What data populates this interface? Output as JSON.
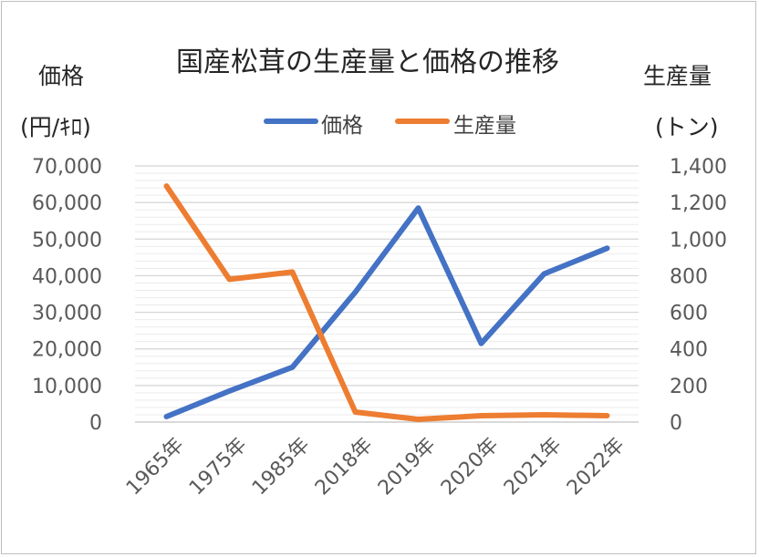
{
  "chart_data": {
    "type": "line",
    "title": "国産松茸の生産量と価格の推移",
    "categories": [
      "1965年",
      "1975年",
      "1985年",
      "2018年",
      "2019年",
      "2020年",
      "2021年",
      "2022年"
    ],
    "y_left": {
      "label_line1": "価格",
      "label_line2": "(円/ｷﾛ)",
      "range": [
        0,
        70000
      ],
      "ticks": [
        "0",
        "10,000",
        "20,000",
        "30,000",
        "40,000",
        "50,000",
        "60,000",
        "70,000"
      ]
    },
    "y_right": {
      "label_line1": "生産量",
      "label_line2": "(トン)",
      "range": [
        0,
        1400
      ],
      "ticks": [
        "0",
        "200",
        "400",
        "600",
        "800",
        "1,000",
        "1,200",
        "1,400"
      ]
    },
    "series": [
      {
        "name": "価格",
        "axis": "left",
        "color": "#4472c4",
        "values": [
          1500,
          8500,
          15000,
          35500,
          58500,
          21500,
          40500,
          47500
        ]
      },
      {
        "name": "生産量",
        "axis": "right",
        "color": "#ed7d31",
        "values": [
          1290,
          780,
          820,
          55,
          15,
          35,
          40,
          35
        ]
      }
    ],
    "grid": true,
    "legend_position": "top"
  }
}
